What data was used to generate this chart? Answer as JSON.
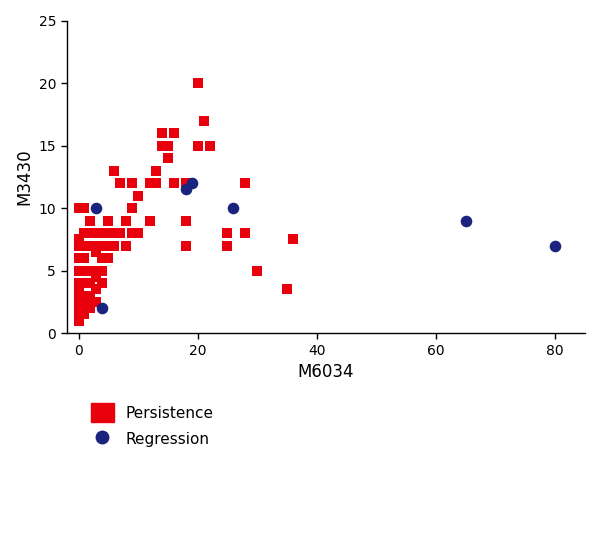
{
  "persistence_x": [
    0,
    0,
    0,
    0,
    0,
    0,
    0,
    0,
    0,
    0,
    0,
    0,
    1,
    1,
    1,
    1,
    1,
    1,
    1,
    1,
    1,
    1,
    2,
    2,
    2,
    2,
    2,
    2,
    2,
    2,
    3,
    3,
    3,
    3,
    3,
    3,
    3,
    4,
    4,
    4,
    4,
    4,
    5,
    5,
    5,
    5,
    6,
    6,
    6,
    7,
    7,
    8,
    8,
    9,
    9,
    9,
    10,
    10,
    12,
    12,
    13,
    13,
    14,
    14,
    15,
    15,
    16,
    16,
    18,
    18,
    18,
    20,
    20,
    21,
    22,
    25,
    25,
    28,
    28,
    30,
    35,
    36
  ],
  "persistence_y": [
    10,
    7.5,
    7,
    6,
    5,
    4,
    3.5,
    3,
    2.5,
    2,
    1.5,
    1,
    10,
    8,
    7,
    6,
    5,
    4,
    3,
    2.5,
    2,
    1.5,
    9,
    8,
    7,
    5,
    4,
    3,
    2.5,
    2,
    8,
    7,
    6.5,
    5,
    4.5,
    3.5,
    2.5,
    8,
    7,
    6,
    5,
    4,
    9,
    8,
    7,
    6,
    13,
    8,
    7,
    12,
    8,
    9,
    7,
    12,
    10,
    8,
    11,
    8,
    12,
    9,
    13,
    12,
    16,
    15,
    15,
    14,
    16,
    12,
    12,
    9,
    7,
    20,
    15,
    17,
    15,
    8,
    7,
    12,
    8,
    5,
    3.5,
    7.5
  ],
  "regression_x": [
    3,
    4,
    18,
    19,
    26,
    65,
    80
  ],
  "regression_y": [
    10,
    2,
    11.5,
    12,
    10,
    9,
    7
  ],
  "xlabel": "M6034",
  "ylabel": "M3430",
  "xlim": [
    -2,
    85
  ],
  "ylim": [
    0,
    25
  ],
  "xticks": [
    0,
    20,
    40,
    60,
    80
  ],
  "yticks": [
    0,
    5,
    10,
    15,
    20,
    25
  ],
  "persistence_color": "#e8000d",
  "regression_color": "#1a237e",
  "marker_size_persistence": 48,
  "marker_size_regression": 70,
  "legend_labels": [
    "Persistence",
    "Regression"
  ],
  "background_color": "#ffffff"
}
